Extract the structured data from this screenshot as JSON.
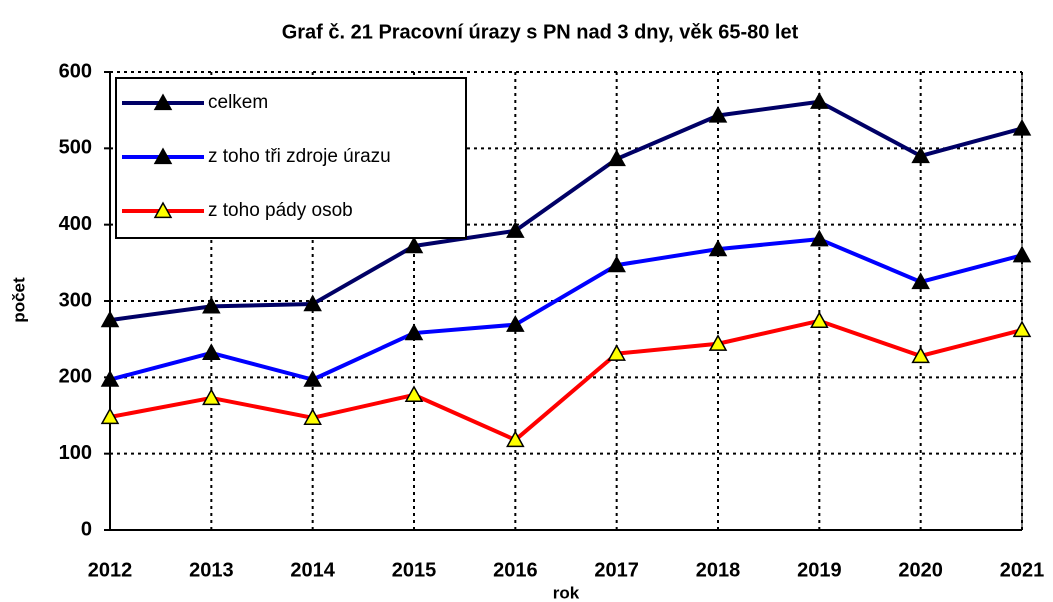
{
  "chart_data": {
    "type": "line",
    "title": "Graf č. 21  Pracovní úrazy s PN nad 3 dny, věk 65-80 let",
    "x_label": "rok",
    "y_label": "počet",
    "categories": [
      "2012",
      "2013",
      "2014",
      "2015",
      "2016",
      "2017",
      "2018",
      "2019",
      "2020",
      "2021"
    ],
    "series": [
      {
        "name": "celkem",
        "color": "#000066",
        "marker_color": "#000000",
        "values": [
          275,
          293,
          296,
          372,
          392,
          486,
          543,
          561,
          490,
          526
        ]
      },
      {
        "name": "z toho tři zdroje úrazu",
        "color": "#0000ff",
        "marker_color": "#000000",
        "values": [
          197,
          232,
          197,
          258,
          269,
          347,
          368,
          381,
          325,
          360
        ]
      },
      {
        "name": "z toho pády osob",
        "color": "#ff0000",
        "marker_color": "#ffff00",
        "values": [
          148,
          173,
          147,
          177,
          118,
          231,
          244,
          274,
          228,
          262
        ]
      }
    ],
    "ylim": [
      0,
      600
    ],
    "yticks": [
      0,
      100,
      200,
      300,
      400,
      500,
      600
    ],
    "grid": true,
    "legend": "upper left"
  }
}
